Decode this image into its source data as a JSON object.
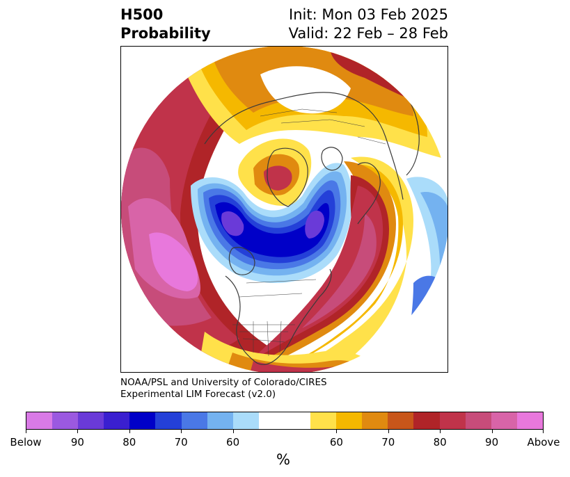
{
  "title": {
    "left_line1": "H500",
    "left_line2": "Probability",
    "right_line1": "Init: Mon 03 Feb 2025",
    "right_line2": "Valid: 22 Feb – 28 Feb"
  },
  "credit": {
    "line1": "NOAA/PSL and University of Colorado/CIRES",
    "line2": "Experimental LIM Forecast (v2.0)"
  },
  "colorbar": {
    "unit": "%",
    "colors": [
      "#d97ae6",
      "#9b59e0",
      "#6a3ad8",
      "#3a1fd0",
      "#0000c8",
      "#2440d8",
      "#4a78e6",
      "#74b2f0",
      "#aadcfa",
      "#ffffff",
      "#ffffff",
      "#ffe14a",
      "#f5b800",
      "#e08a10",
      "#c8561a",
      "#b02428",
      "#c0334a",
      "#c74c7a",
      "#d864a8",
      "#e878dc"
    ],
    "tick_labels": [
      "Below",
      "90",
      "80",
      "70",
      "60",
      "60",
      "70",
      "80",
      "90",
      "Above"
    ]
  },
  "map": {
    "projection": "north-polar-stereographic",
    "palette": {
      "white": "#ffffff",
      "yellow": "#ffe14a",
      "gold": "#f5b800",
      "orange": "#e08a10",
      "darkorange": "#c8561a",
      "red": "#b02428",
      "crimson": "#c0334a",
      "rose": "#c74c7a",
      "pink": "#d864a8",
      "magenta": "#e878dc",
      "lightblue": "#aadcfa",
      "skyblue": "#74b2f0",
      "medblue": "#4a78e6",
      "blue": "#2440d8",
      "navy": "#0000c8",
      "indigo": "#3a1fd0",
      "violet": "#6a3ad8",
      "coast": "#3a3a3a"
    }
  }
}
